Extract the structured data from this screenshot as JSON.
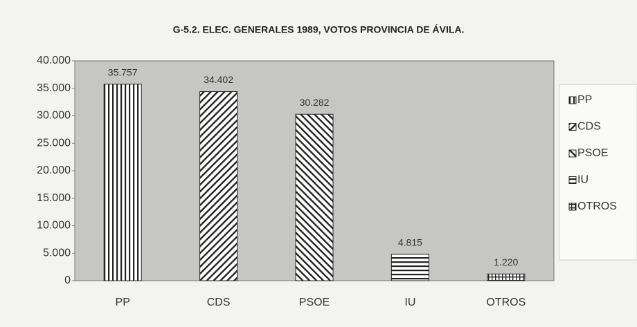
{
  "chart_data": {
    "type": "bar",
    "title": "G-5.2. ELEC. GENERALES 1989, VOTOS PROVINCIA DE ÁVILA.",
    "categories": [
      "PP",
      "CDS",
      "PSOE",
      "IU",
      "OTROS"
    ],
    "values": [
      35757,
      34402,
      30282,
      4815,
      1220
    ],
    "value_labels": [
      "35.757",
      "34.402",
      "30.282",
      "4.815",
      "1.220"
    ],
    "patterns": [
      "vertical",
      "diagonal-up",
      "diagonal-down",
      "horizontal",
      "grid"
    ],
    "color": "#222222",
    "plot_background": "#c6c6c4",
    "ylim": [
      0,
      40000
    ],
    "yticks": [
      {
        "value": 0,
        "label": "0"
      },
      {
        "value": 5000,
        "label": "5.000"
      },
      {
        "value": 10000,
        "label": "10.000"
      },
      {
        "value": 15000,
        "label": "15.000"
      },
      {
        "value": 20000,
        "label": "20.000"
      },
      {
        "value": 25000,
        "label": "25.000"
      },
      {
        "value": 30000,
        "label": "30.000"
      },
      {
        "value": 35000,
        "label": "35.000"
      },
      {
        "value": 40000,
        "label": "40.000"
      }
    ],
    "grid": false,
    "legend": "right"
  }
}
